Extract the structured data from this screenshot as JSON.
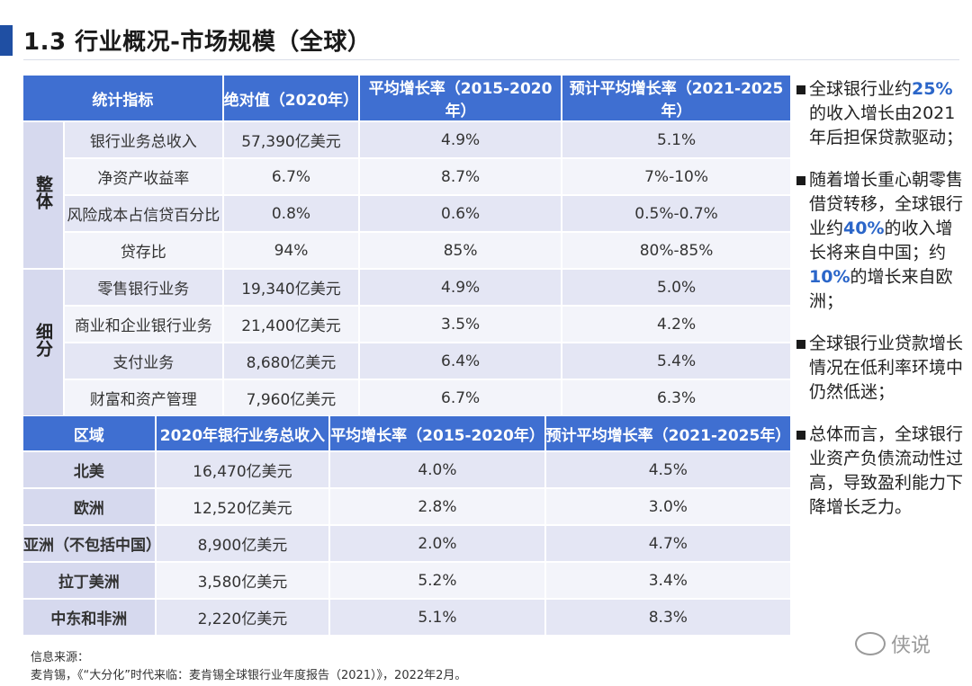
{
  "header": {
    "title": "1.3 行业概况-市场规模（全球）"
  },
  "overview_table": {
    "headers": [
      "统计指标",
      "绝对值（2020年）",
      "平均增长率（2015-2020年）",
      "预计平均增长率（2021-2025年）"
    ],
    "groups": [
      {
        "label": "整体",
        "rows": [
          [
            "银行业务总收入",
            "57,390亿美元",
            "4.9%",
            "5.1%"
          ],
          [
            "净资产收益率",
            "6.7%",
            "8.7%",
            "7%-10%"
          ],
          [
            "风险成本占信贷百分比",
            "0.8%",
            "0.6%",
            "0.5%-0.7%"
          ],
          [
            "贷存比",
            "94%",
            "85%",
            "80%-85%"
          ]
        ]
      },
      {
        "label": "细分",
        "rows": [
          [
            "零售银行业务",
            "19,340亿美元",
            "4.9%",
            "5.0%"
          ],
          [
            "商业和企业银行业务",
            "21,400亿美元",
            "3.5%",
            "4.2%"
          ],
          [
            "支付业务",
            "8,680亿美元",
            "6.4%",
            "5.4%"
          ],
          [
            "财富和资产管理",
            "7,960亿美元",
            "6.7%",
            "6.3%"
          ]
        ]
      }
    ]
  },
  "region_table": {
    "headers": [
      "区域",
      "2020年银行业务总收入",
      "平均增长率（2015-2020年）",
      "预计平均增长率（2021-2025年）"
    ],
    "rows": [
      [
        "北美",
        "16,470亿美元",
        "4.0%",
        "4.5%"
      ],
      [
        "欧洲",
        "12,520亿美元",
        "2.8%",
        "3.0%"
      ],
      [
        "亚洲（不包括中国）",
        "8,900亿美元",
        "2.0%",
        "4.7%"
      ],
      [
        "拉丁美洲",
        "3,580亿美元",
        "5.2%",
        "3.4%"
      ],
      [
        "中东和非洲",
        "2,220亿美元",
        "5.1%",
        "8.3%"
      ]
    ]
  },
  "sidebar": {
    "b1": {
      "pre": "全球银行业约",
      "hl": "25%",
      "post": "的收入增长由2021年后担保贷款驱动；"
    },
    "b2": {
      "pre": "随着增长重心朝零售借贷转移，全球银行业约",
      "hl1": "40%",
      "mid": "的收入增长将来自中国；约",
      "hl2": "10%",
      "post": "的增长来自欧洲；"
    },
    "b3": {
      "text": "全球银行业贷款增长情况在低利率环境中仍然低迷；"
    },
    "b4": {
      "text": "总体而言，全球银行业资产负债流动性过高，导致盈利能力下降增长乏力。"
    }
  },
  "source": {
    "label": "信息来源：",
    "text": "麦肯锡，《“大分化”时代来临：麦肯锡全球银行业年度报告（2021）》，2022年2月。"
  },
  "watermark": {
    "text": "侠说"
  },
  "colors": {
    "header_blue": "#3f6fd1",
    "accent": "#2b66c9",
    "title_bar": "#1f4fa3"
  }
}
